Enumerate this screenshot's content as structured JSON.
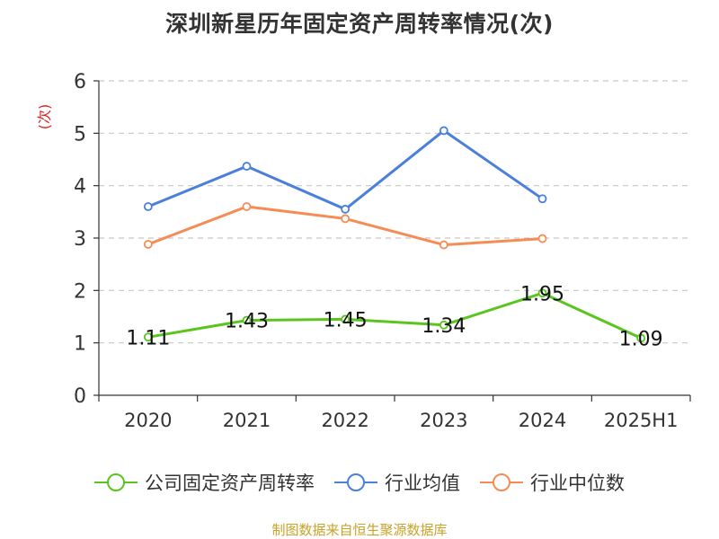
{
  "colors": {
    "series_company": "#5bc51f",
    "series_avg": "#4a7fdb",
    "series_median": "#f58c55",
    "title": "#333333",
    "unit": "#e02020",
    "source": "#c9a227",
    "grid": "#c8c8c8",
    "axis": "#333333"
  },
  "chart_data": {
    "type": "line",
    "title": "深圳新星历年固定资产周转率情况(次)",
    "ylabel": "(次)",
    "xlabel": "",
    "categories": [
      "2020",
      "2021",
      "2022",
      "2023",
      "2024",
      "2025H1"
    ],
    "ylim": [
      0,
      6
    ],
    "yticks": [
      0,
      1,
      2,
      3,
      4,
      5,
      6
    ],
    "grid": true,
    "legend_position": "bottom",
    "series": [
      {
        "name": "公司固定资产周转率",
        "color": "#5bc51f",
        "values": [
          1.11,
          1.43,
          1.45,
          1.34,
          1.95,
          1.09
        ],
        "labels": [
          "1.11",
          "1.43",
          "1.45",
          "1.34",
          "1.95",
          "1.09"
        ],
        "show_labels": true
      },
      {
        "name": "行业均值",
        "color": "#4a7fdb",
        "values": [
          3.6,
          4.37,
          3.55,
          5.05,
          3.75,
          null
        ],
        "show_labels": false
      },
      {
        "name": "行业中位数",
        "color": "#f58c55",
        "values": [
          2.88,
          3.6,
          3.37,
          2.87,
          2.99,
          null
        ],
        "show_labels": false
      }
    ]
  },
  "footer": {
    "source": "制图数据来自恒生聚源数据库"
  }
}
